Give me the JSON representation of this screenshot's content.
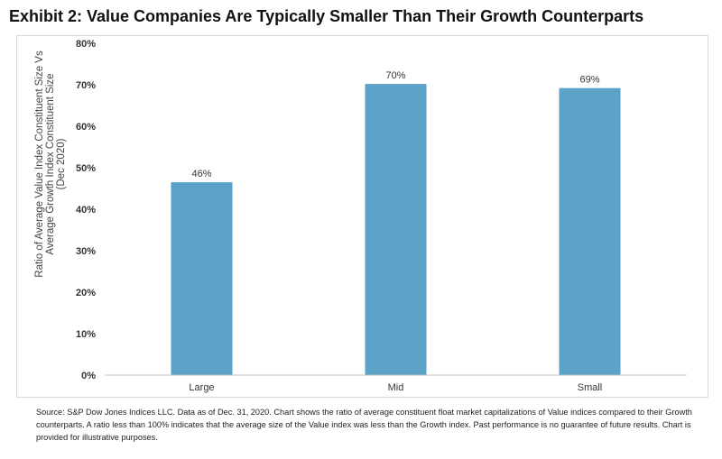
{
  "title": "Exhibit 2: Value Companies Are Typically Smaller Than Their Growth Counterparts",
  "source_note": "Source: S&P Dow Jones Indices LLC. Data as of Dec. 31, 2020. Chart shows the ratio of average constituent float market capitalizations of Value indices compared to their Growth counterparts. A ratio less than 100% indicates that the average size of the Value index was less than the Growth index. Past performance is no guarantee of future results. Chart is provided for illustrative purposes.",
  "colors": {
    "bar": "#5aa2c7",
    "axis": "#bfbfbf",
    "tick_text": "#333333"
  },
  "chart_data": {
    "type": "bar",
    "categories": [
      "Large",
      "Mid",
      "Small"
    ],
    "values": [
      46.5,
      70.2,
      69.2
    ],
    "data_labels": [
      "46%",
      "70%",
      "69%"
    ],
    "ylim": [
      0,
      80
    ],
    "yticks": [
      0,
      10,
      20,
      30,
      40,
      50,
      60,
      70,
      80
    ],
    "ytick_labels": [
      "0%",
      "10%",
      "20%",
      "30%",
      "40%",
      "50%",
      "60%",
      "70%",
      "80%"
    ],
    "ylabel_lines": [
      "Ratio of Average Value Index Constituent Size Vs",
      "Average Growth Index Constituent Size",
      "(Dec 2020)"
    ],
    "xlabel": "",
    "grid": false
  }
}
